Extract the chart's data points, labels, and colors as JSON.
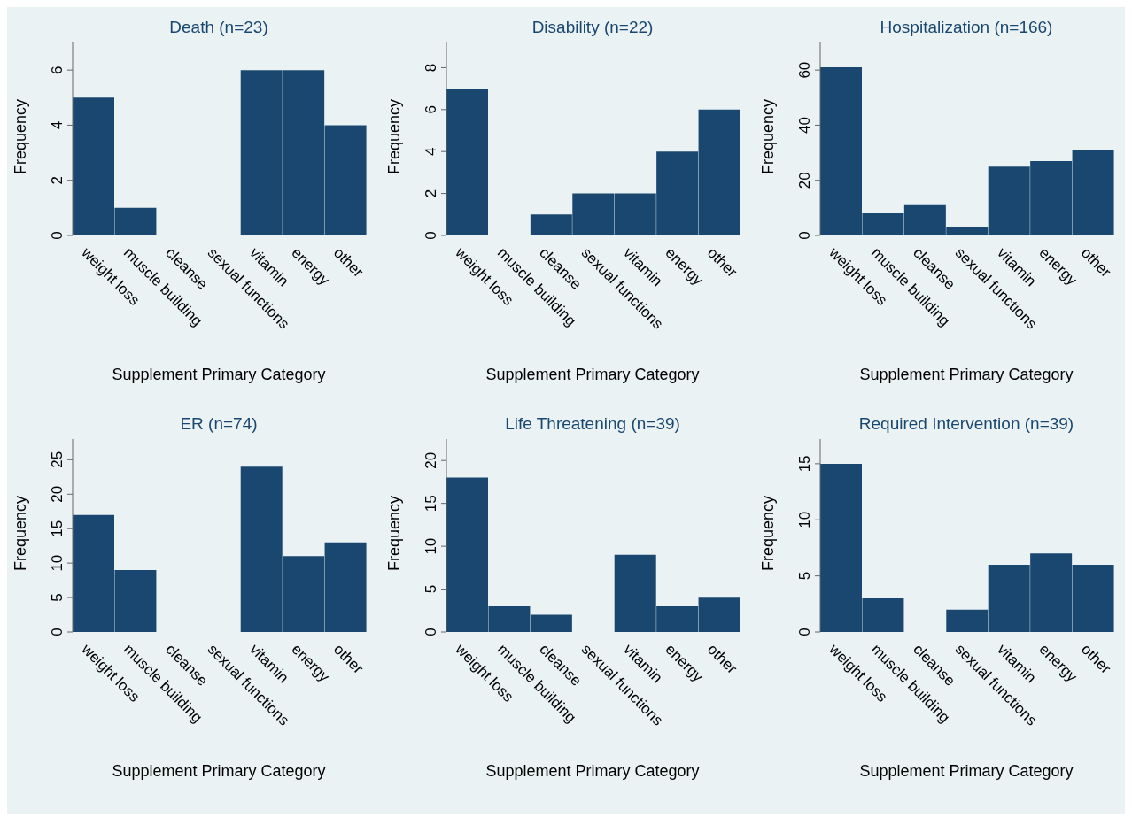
{
  "chart_data": [
    {
      "type": "bar",
      "title": "Death (n=23)",
      "xlabel": "Supplement Primary Category",
      "ylabel": "Frequency",
      "categories": [
        "weight loss",
        "muscle building",
        "cleanse",
        "sexual functions",
        "vitamin",
        "energy",
        "other"
      ],
      "values": [
        5,
        1,
        0,
        0,
        6,
        6,
        4
      ],
      "color": "#1a476f",
      "ylim": [
        0,
        7
      ],
      "yticks": [
        0,
        2,
        4,
        6
      ]
    },
    {
      "type": "bar",
      "title": "Disability (n=22)",
      "xlabel": "Supplement Primary Category",
      "ylabel": "Frequency",
      "categories": [
        "weight loss",
        "muscle building",
        "cleanse",
        "sexual functions",
        "vitamin",
        "energy",
        "other"
      ],
      "values": [
        7,
        0,
        1,
        2,
        2,
        4,
        6
      ],
      "color": "#1a476f",
      "ylim": [
        0,
        9.2
      ],
      "yticks": [
        0,
        2,
        4,
        6,
        8
      ]
    },
    {
      "type": "bar",
      "title": "Hospitalization (n=166)",
      "xlabel": "Supplement Primary Category",
      "ylabel": "Frequency",
      "categories": [
        "weight loss",
        "muscle building",
        "cleanse",
        "sexual functions",
        "vitamin",
        "energy",
        "other"
      ],
      "values": [
        61,
        8,
        11,
        3,
        25,
        27,
        31
      ],
      "color": "#1a476f",
      "ylim": [
        0,
        70
      ],
      "yticks": [
        0,
        20,
        40,
        60
      ]
    },
    {
      "type": "bar",
      "title": "ER (n=74)",
      "xlabel": "Supplement Primary Category",
      "ylabel": "Frequency",
      "categories": [
        "weight loss",
        "muscle building",
        "cleanse",
        "sexual functions",
        "vitamin",
        "energy",
        "other"
      ],
      "values": [
        17,
        9,
        0,
        0,
        24,
        11,
        13
      ],
      "color": "#1a476f",
      "ylim": [
        0,
        28
      ],
      "yticks": [
        0,
        5,
        10,
        15,
        20,
        25
      ]
    },
    {
      "type": "bar",
      "title": "Life Threatening (n=39)",
      "xlabel": "Supplement Primary Category",
      "ylabel": "Frequency",
      "categories": [
        "weight loss",
        "muscle building",
        "cleanse",
        "sexual functions",
        "vitamin",
        "energy",
        "other"
      ],
      "values": [
        18,
        3,
        2,
        0,
        9,
        3,
        4
      ],
      "color": "#1a476f",
      "ylim": [
        0,
        22.5
      ],
      "yticks": [
        0,
        5,
        10,
        15,
        20
      ]
    },
    {
      "type": "bar",
      "title": "Required Intervention (n=39)",
      "xlabel": "Supplement Primary Category",
      "ylabel": "Frequency",
      "categories": [
        "weight loss",
        "muscle building",
        "cleanse",
        "sexual functions",
        "vitamin",
        "energy",
        "other"
      ],
      "values": [
        15,
        3,
        0,
        2,
        6,
        7,
        6
      ],
      "color": "#1a476f",
      "ylim": [
        0,
        17.2
      ],
      "yticks": [
        0,
        5,
        10,
        15
      ]
    }
  ]
}
